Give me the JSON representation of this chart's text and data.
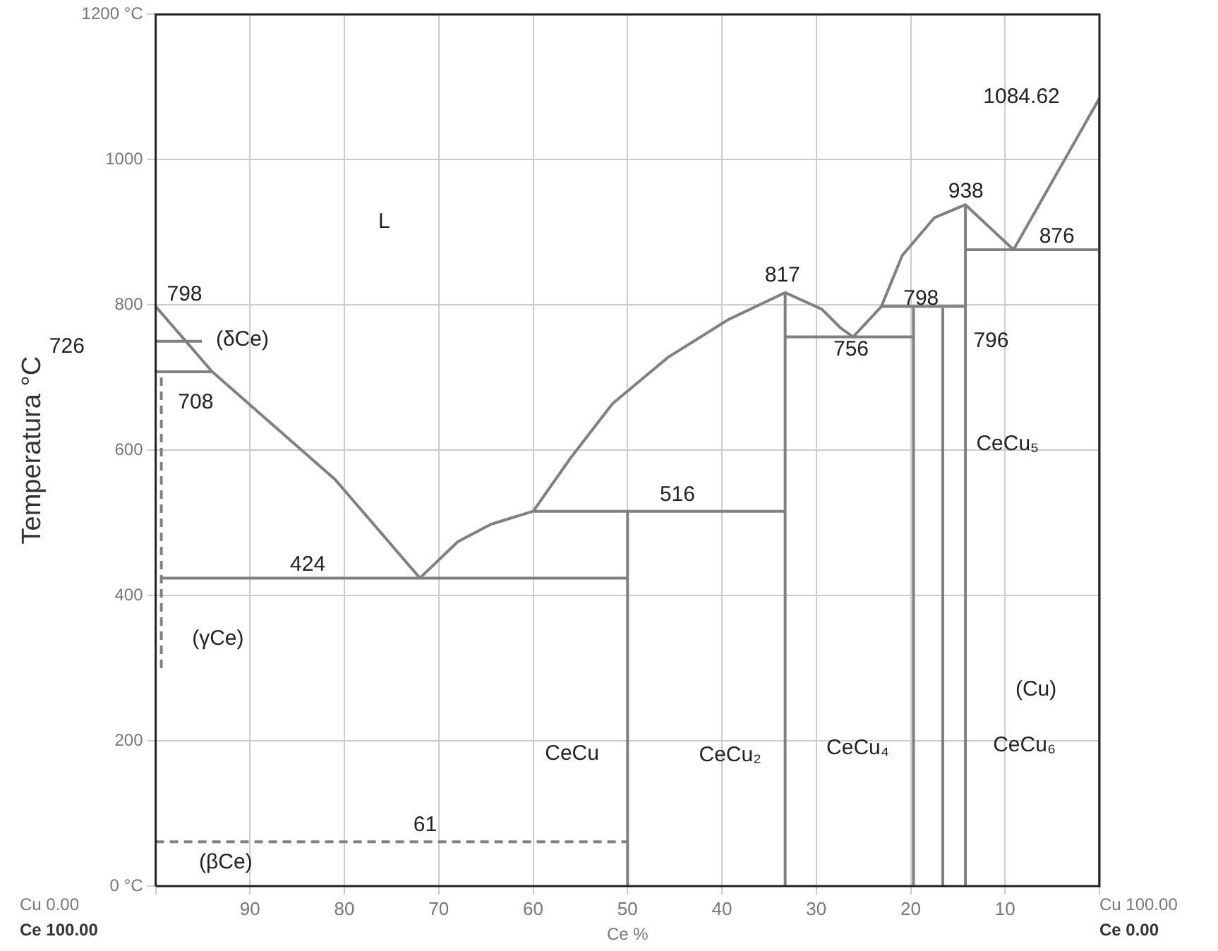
{
  "chart_data": {
    "type": "line",
    "xlabel": "Ce %",
    "ylabel": "Temperatura °C",
    "xlim": [
      100,
      0
    ],
    "ylim": [
      0,
      1200
    ],
    "xticks": [
      {
        "value": 100,
        "label": null
      },
      90,
      80,
      70,
      60,
      50,
      40,
      30,
      20,
      10,
      {
        "value": 0,
        "label": null
      }
    ],
    "yticks": [
      {
        "value": 0,
        "label": "0 °C"
      },
      200,
      400,
      600,
      800,
      1000,
      {
        "value": 1200,
        "label": "1200 °C"
      }
    ],
    "grid": true,
    "legend": false,
    "marker": "none",
    "series": [
      {
        "color": "#808080",
        "x": [
          100,
          94,
          81,
          72
        ],
        "values": [
          798,
          708,
          560,
          424
        ]
      },
      {
        "color": "#808080",
        "x": [
          72,
          68,
          64.5,
          60,
          56,
          51.6,
          45.7,
          39.3,
          33.3,
          29.4,
          27.4,
          26.1,
          23.1,
          20.9,
          17.5,
          14.2,
          9.1,
          0
        ],
        "values": [
          424,
          474,
          498,
          516,
          590,
          664,
          728,
          780,
          817,
          794,
          768,
          756,
          798,
          868,
          920,
          938,
          876,
          1084.62
        ]
      },
      {
        "color": "#808080",
        "x": [
          99.5,
          50
        ],
        "values": [
          424,
          424
        ]
      },
      {
        "color": "#808080",
        "x": [
          59.9,
          33.3
        ],
        "values": [
          516,
          516
        ]
      },
      {
        "color": "#808080",
        "x": [
          33.3,
          19.7
        ],
        "values": [
          756,
          756
        ]
      },
      {
        "color": "#808080",
        "x": [
          23.1,
          14.2
        ],
        "values": [
          798,
          798
        ]
      },
      {
        "color": "#808080",
        "x": [
          14.2,
          0
        ],
        "values": [
          876,
          876
        ]
      },
      {
        "color": "#808080",
        "x": [
          100,
          95.1
        ],
        "values": [
          750,
          750
        ]
      },
      {
        "color": "#808080",
        "x": [
          100,
          94
        ],
        "values": [
          708,
          708
        ]
      },
      {
        "color": "#808080",
        "x": [
          50,
          50
        ],
        "values": [
          0,
          516
        ]
      },
      {
        "color": "#808080",
        "x": [
          33.3,
          33.3
        ],
        "values": [
          0,
          817
        ]
      },
      {
        "color": "#808080",
        "x": [
          19.7,
          19.7
        ],
        "values": [
          0,
          798
        ]
      },
      {
        "color": "#808080",
        "x": [
          16.6,
          16.6
        ],
        "values": [
          0,
          796
        ]
      },
      {
        "color": "#808080",
        "x": [
          14.2,
          14.2
        ],
        "values": [
          0,
          938
        ]
      },
      {
        "color": "#808080",
        "x": [
          0,
          0
        ],
        "values": [
          0,
          1084.62
        ]
      },
      {
        "color": "#808080",
        "line_style": "dashed",
        "x": [
          99.4,
          99.4
        ],
        "values": [
          300,
          708
        ]
      },
      {
        "color": "#808080",
        "line_style": "dashed",
        "x": [
          100,
          50
        ],
        "values": [
          61,
          61
        ]
      }
    ],
    "annotations": [
      "L",
      "798",
      "(δCe)",
      "726",
      "708",
      "424",
      "516",
      "817",
      "756",
      "798",
      "796",
      "938",
      "1084.62",
      "876",
      "61",
      "(γCe)",
      "(βCe)",
      "CeCu",
      "CeCu₂",
      "CeCu₄",
      "CeCu₅",
      "CeCu₆",
      "(Cu)",
      "Cu 0.00",
      "Ce 100.00",
      "Cu 100.00",
      "Ce 0.00"
    ]
  }
}
